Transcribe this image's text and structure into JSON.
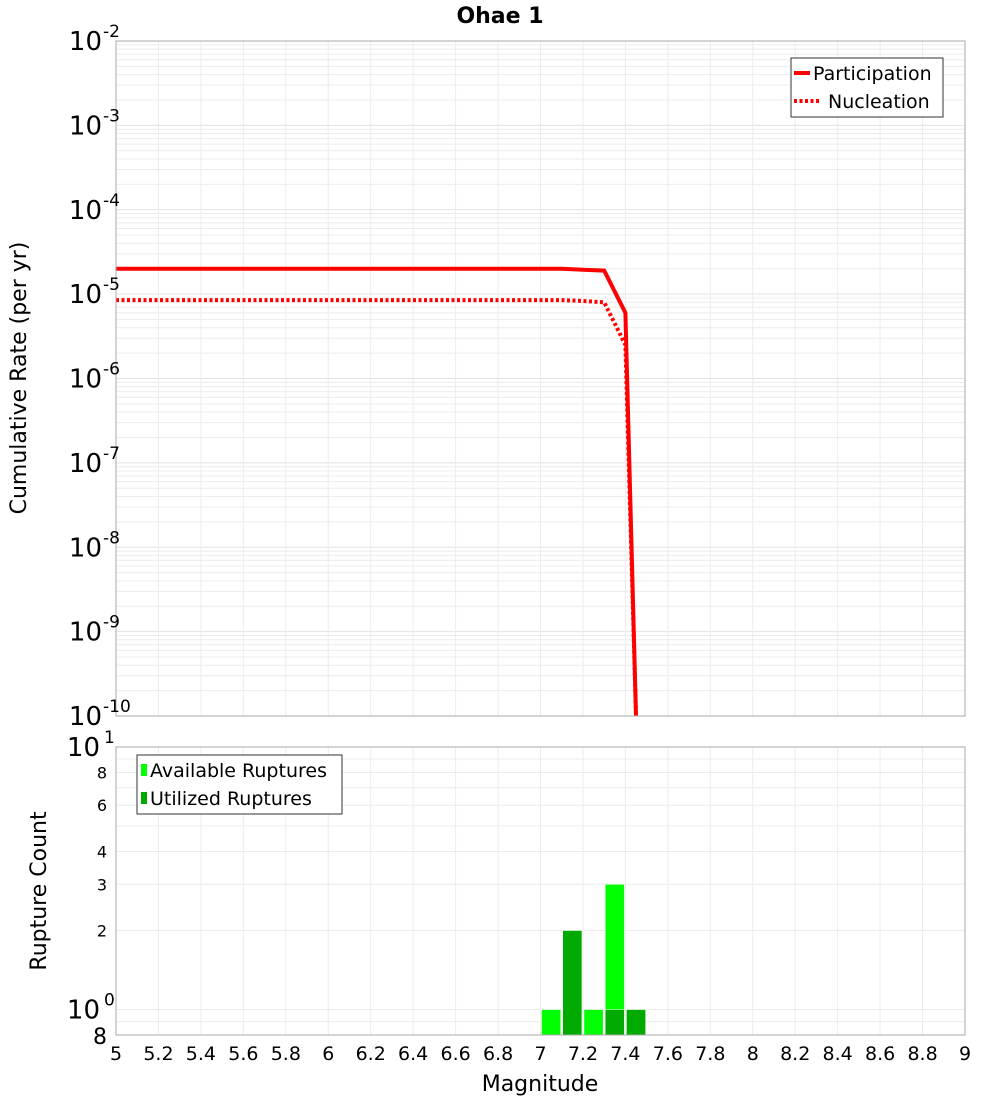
{
  "chart_data": [
    {
      "type": "line",
      "title": "Ohae 1",
      "xlabel": "",
      "ylabel": "Cumulative Rate (per yr)",
      "xlim": [
        5,
        9
      ],
      "ylim": [
        1e-10,
        0.01
      ],
      "yscale": "log",
      "grid": true,
      "legend_position": "top-right",
      "y_tick_labels": [
        "10^-2",
        "10^-3",
        "10^-4",
        "10^-5",
        "10^-6",
        "10^-7",
        "10^-8",
        "10^-9",
        "10^-10"
      ],
      "series": [
        {
          "name": "Participation",
          "style": "solid",
          "color": "#ff0000",
          "x": [
            5.0,
            7.1,
            7.2,
            7.3,
            7.4,
            7.45
          ],
          "y": [
            2e-05,
            2e-05,
            1.95e-05,
            1.9e-05,
            6e-06,
            1e-10
          ]
        },
        {
          "name": "Nucleation",
          "style": "dotted",
          "color": "#ff0000",
          "x": [
            5.0,
            7.1,
            7.2,
            7.3,
            7.4,
            7.45
          ],
          "y": [
            8.5e-06,
            8.5e-06,
            8.3e-06,
            8e-06,
            2.5e-06,
            1e-10
          ]
        }
      ]
    },
    {
      "type": "bar",
      "title": "",
      "xlabel": "Magnitude",
      "ylabel": "Rupture Count",
      "xlim": [
        5,
        9
      ],
      "ylim": [
        0.8,
        10
      ],
      "yscale": "log",
      "grid": true,
      "legend_position": "top-left",
      "x_tick_labels": [
        "5",
        "5.2",
        "5.4",
        "5.6",
        "5.8",
        "6",
        "6.2",
        "6.4",
        "6.6",
        "6.8",
        "7",
        "7.2",
        "7.4",
        "7.6",
        "7.8",
        "8",
        "8.2",
        "8.4",
        "8.6",
        "8.8",
        "9"
      ],
      "y_tick_labels": [
        "10^1",
        "8",
        "6",
        "4",
        "3",
        "2",
        "10^0",
        "8"
      ],
      "bar_width": 0.1,
      "series": [
        {
          "name": "Available Ruptures",
          "color": "#00ff00",
          "x": [
            7.05,
            7.25,
            7.35
          ],
          "values": [
            1,
            1,
            3
          ]
        },
        {
          "name": "Utilized Ruptures",
          "color": "#00aa00",
          "x": [
            7.15,
            7.35,
            7.45
          ],
          "values": [
            2,
            1,
            1
          ]
        }
      ]
    }
  ],
  "labels": {
    "title": "Ohae 1",
    "top_ylabel": "Cumulative Rate (per yr)",
    "bottom_ylabel": "Rupture Count",
    "xlabel": "Magnitude",
    "legend_top": [
      "Participation",
      "Nucleation"
    ],
    "legend_bottom": [
      "Available Ruptures",
      "Utilized Ruptures"
    ]
  }
}
